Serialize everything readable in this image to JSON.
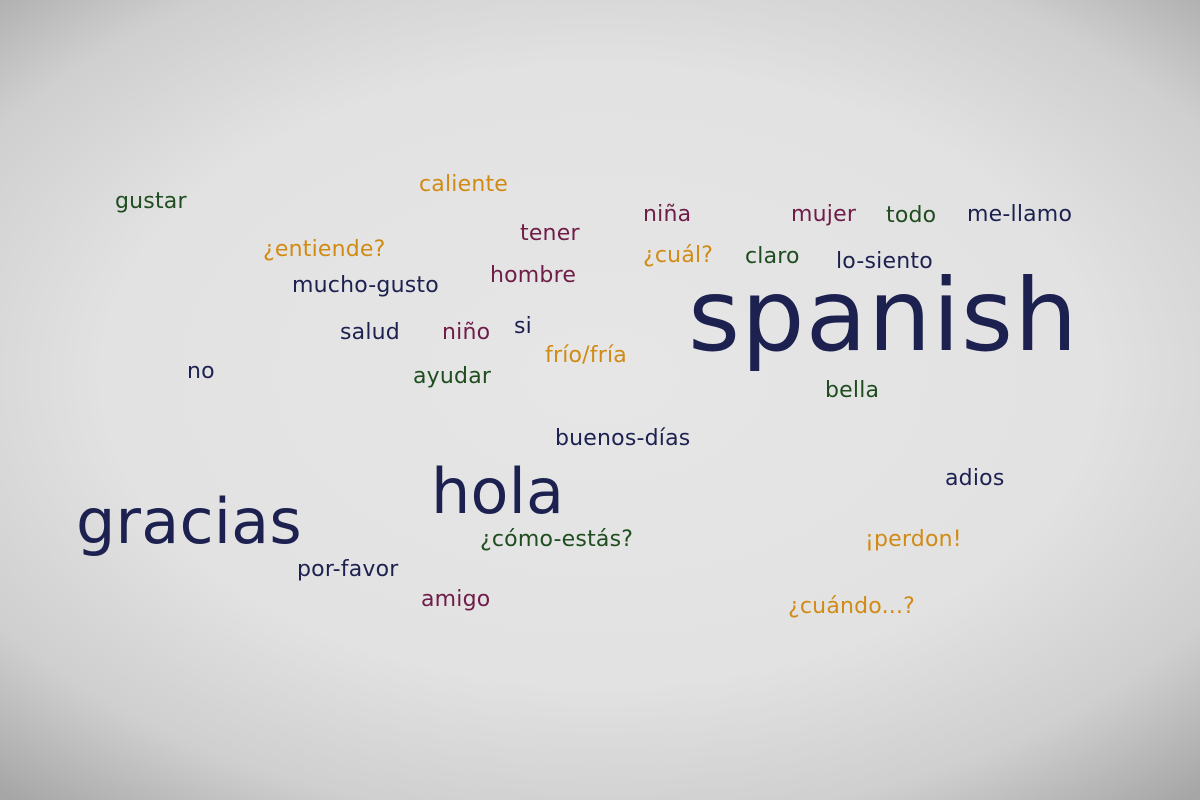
{
  "words": {
    "caliente": "caliente",
    "gustar": "gustar",
    "nina": "niña",
    "mujer": "mujer",
    "todo": "todo",
    "me_llamo": "me-llamo",
    "tener": "tener",
    "entiende": "¿entiende?",
    "cual": "¿cuál?",
    "claro": "claro",
    "lo_siento": "lo-siento",
    "hombre": "hombre",
    "mucho_gusto": "mucho-gusto",
    "spanish": "spanish",
    "si": "si",
    "salud": "salud",
    "nino": "niño",
    "frio_fria": "frío/fría",
    "no": "no",
    "ayudar": "ayudar",
    "bella": "bella",
    "buenos_dias": "buenos-días",
    "hola": "hola",
    "adios": "adios",
    "gracias": "gracias",
    "como_estas": "¿cómo-estás?",
    "perdon": "¡perdon!",
    "por_favor": "por-favor",
    "amigo": "amigo",
    "cuando": "¿cuándo...?"
  },
  "colors": {
    "navy": "#1c2150",
    "green": "#1f4d1f",
    "orange": "#d18b14",
    "maroon": "#6e1d48"
  }
}
